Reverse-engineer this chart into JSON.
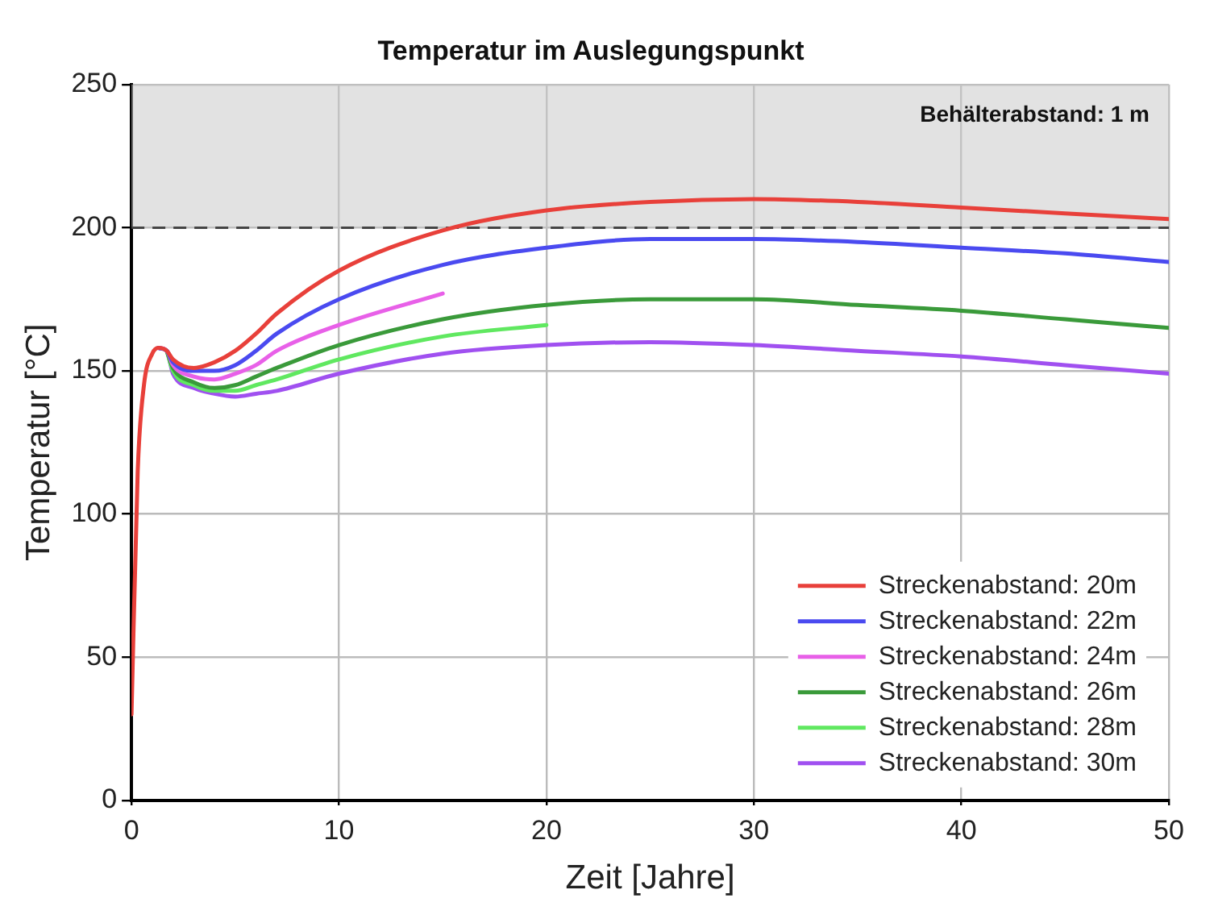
{
  "chart_data": {
    "type": "line",
    "title": "Temperatur im Auslegungspunkt",
    "xlabel": "Zeit [Jahre]",
    "ylabel": "Temperatur [°C]",
    "x": [
      0,
      0.3,
      0.6,
      1,
      1.3,
      1.7,
      2,
      3,
      4,
      5,
      6,
      7,
      10,
      15,
      20,
      25,
      30,
      35,
      40,
      45,
      50
    ],
    "series": [
      {
        "name": "Streckenabstand: 20m",
        "color": "#e8403a",
        "values": [
          30,
          115,
          145,
          156,
          158,
          157,
          154,
          151,
          153,
          157,
          163,
          170,
          185,
          199,
          206,
          209,
          210,
          209,
          207,
          205,
          203
        ]
      },
      {
        "name": "Streckenabstand: 22m",
        "color": "#4a4af0",
        "values": [
          null,
          null,
          null,
          null,
          158,
          157,
          153,
          150,
          150,
          152,
          157,
          163,
          175,
          187,
          193,
          196,
          196,
          195,
          193,
          191,
          188
        ]
      },
      {
        "name": "Streckenabstand: 24m",
        "color": "#e860e8",
        "values": [
          null,
          null,
          null,
          null,
          158,
          157,
          152,
          148,
          147,
          149,
          152,
          157,
          166,
          177,
          null,
          null,
          null,
          null,
          null,
          null,
          null
        ]
      },
      {
        "name": "Streckenabstand: 26m",
        "color": "#3a9a3a",
        "values": [
          null,
          null,
          null,
          null,
          null,
          157,
          151,
          146,
          144,
          145,
          148,
          151,
          159,
          168,
          173,
          175,
          175,
          173,
          171,
          168,
          165
        ]
      },
      {
        "name": "Streckenabstand: 28m",
        "color": "#60e860",
        "values": [
          null,
          null,
          null,
          null,
          null,
          157,
          150,
          145,
          143,
          143,
          145,
          147,
          154,
          162,
          166,
          null,
          null,
          null,
          null,
          null,
          null
        ]
      },
      {
        "name": "Streckenabstand: 30m",
        "color": "#a050f0",
        "values": [
          null,
          null,
          null,
          null,
          158,
          157,
          149,
          144,
          142,
          141,
          142,
          143,
          149,
          156,
          159,
          160,
          159,
          157,
          155,
          152,
          149
        ]
      }
    ],
    "xlim": [
      0,
      50
    ],
    "xticks": [
      0,
      10,
      20,
      30,
      40,
      50
    ],
    "ylim": [
      0,
      250
    ],
    "yticks": [
      0,
      50,
      100,
      150,
      200,
      250
    ],
    "ref_lines": [
      {
        "axis": "y",
        "value": 200,
        "color": "#444444",
        "line_style": "dashed"
      }
    ],
    "bands": [
      {
        "axis": "y",
        "from": 200,
        "to": 250,
        "label": "Behälterabstand: 1 m",
        "color": "#c8c8c8"
      }
    ],
    "grid": true,
    "legend": "bottom right",
    "marker": "none",
    "line_style": "solid"
  }
}
